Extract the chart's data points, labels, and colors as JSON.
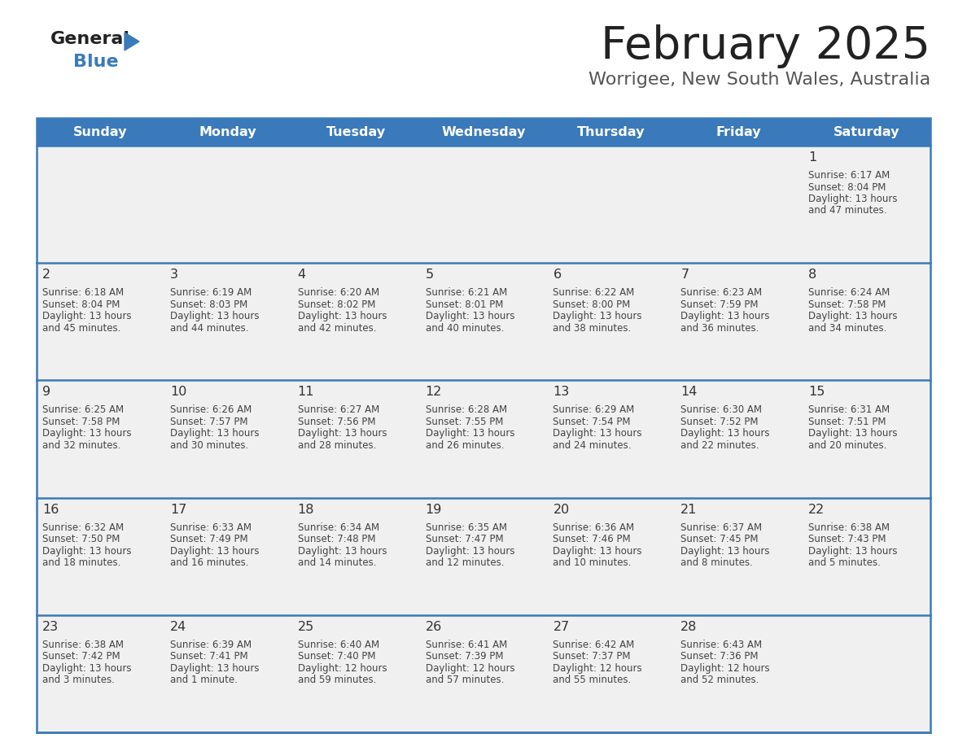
{
  "title": "February 2025",
  "subtitle": "Worrigee, New South Wales, Australia",
  "header_color": "#3a7aba",
  "header_text_color": "#ffffff",
  "day_names": [
    "Sunday",
    "Monday",
    "Tuesday",
    "Wednesday",
    "Thursday",
    "Friday",
    "Saturday"
  ],
  "background_color": "#ffffff",
  "cell_bg_color": "#f0f0f0",
  "cell_border_color": "#3a7aba",
  "day_number_color": "#333333",
  "info_text_color": "#444444",
  "title_color": "#222222",
  "subtitle_color": "#555555",
  "logo_general_color": "#222222",
  "logo_blue_color": "#3a7aba",
  "logo_triangle_color": "#3a7aba",
  "calendar_data": [
    [
      null,
      null,
      null,
      null,
      null,
      null,
      {
        "day": "1",
        "sunrise": "6:17 AM",
        "sunset": "8:04 PM",
        "daylight_hours": "13",
        "daylight_min": "47 minutes"
      }
    ],
    [
      {
        "day": "2",
        "sunrise": "6:18 AM",
        "sunset": "8:04 PM",
        "daylight_hours": "13",
        "daylight_min": "45 minutes"
      },
      {
        "day": "3",
        "sunrise": "6:19 AM",
        "sunset": "8:03 PM",
        "daylight_hours": "13",
        "daylight_min": "44 minutes"
      },
      {
        "day": "4",
        "sunrise": "6:20 AM",
        "sunset": "8:02 PM",
        "daylight_hours": "13",
        "daylight_min": "42 minutes"
      },
      {
        "day": "5",
        "sunrise": "6:21 AM",
        "sunset": "8:01 PM",
        "daylight_hours": "13",
        "daylight_min": "40 minutes"
      },
      {
        "day": "6",
        "sunrise": "6:22 AM",
        "sunset": "8:00 PM",
        "daylight_hours": "13",
        "daylight_min": "38 minutes"
      },
      {
        "day": "7",
        "sunrise": "6:23 AM",
        "sunset": "7:59 PM",
        "daylight_hours": "13",
        "daylight_min": "36 minutes"
      },
      {
        "day": "8",
        "sunrise": "6:24 AM",
        "sunset": "7:58 PM",
        "daylight_hours": "13",
        "daylight_min": "34 minutes"
      }
    ],
    [
      {
        "day": "9",
        "sunrise": "6:25 AM",
        "sunset": "7:58 PM",
        "daylight_hours": "13",
        "daylight_min": "32 minutes"
      },
      {
        "day": "10",
        "sunrise": "6:26 AM",
        "sunset": "7:57 PM",
        "daylight_hours": "13",
        "daylight_min": "30 minutes"
      },
      {
        "day": "11",
        "sunrise": "6:27 AM",
        "sunset": "7:56 PM",
        "daylight_hours": "13",
        "daylight_min": "28 minutes"
      },
      {
        "day": "12",
        "sunrise": "6:28 AM",
        "sunset": "7:55 PM",
        "daylight_hours": "13",
        "daylight_min": "26 minutes"
      },
      {
        "day": "13",
        "sunrise": "6:29 AM",
        "sunset": "7:54 PM",
        "daylight_hours": "13",
        "daylight_min": "24 minutes"
      },
      {
        "day": "14",
        "sunrise": "6:30 AM",
        "sunset": "7:52 PM",
        "daylight_hours": "13",
        "daylight_min": "22 minutes"
      },
      {
        "day": "15",
        "sunrise": "6:31 AM",
        "sunset": "7:51 PM",
        "daylight_hours": "13",
        "daylight_min": "20 minutes"
      }
    ],
    [
      {
        "day": "16",
        "sunrise": "6:32 AM",
        "sunset": "7:50 PM",
        "daylight_hours": "13",
        "daylight_min": "18 minutes"
      },
      {
        "day": "17",
        "sunrise": "6:33 AM",
        "sunset": "7:49 PM",
        "daylight_hours": "13",
        "daylight_min": "16 minutes"
      },
      {
        "day": "18",
        "sunrise": "6:34 AM",
        "sunset": "7:48 PM",
        "daylight_hours": "13",
        "daylight_min": "14 minutes"
      },
      {
        "day": "19",
        "sunrise": "6:35 AM",
        "sunset": "7:47 PM",
        "daylight_hours": "13",
        "daylight_min": "12 minutes"
      },
      {
        "day": "20",
        "sunrise": "6:36 AM",
        "sunset": "7:46 PM",
        "daylight_hours": "13",
        "daylight_min": "10 minutes"
      },
      {
        "day": "21",
        "sunrise": "6:37 AM",
        "sunset": "7:45 PM",
        "daylight_hours": "13",
        "daylight_min": "8 minutes"
      },
      {
        "day": "22",
        "sunrise": "6:38 AM",
        "sunset": "7:43 PM",
        "daylight_hours": "13",
        "daylight_min": "5 minutes"
      }
    ],
    [
      {
        "day": "23",
        "sunrise": "6:38 AM",
        "sunset": "7:42 PM",
        "daylight_hours": "13",
        "daylight_min": "3 minutes"
      },
      {
        "day": "24",
        "sunrise": "6:39 AM",
        "sunset": "7:41 PM",
        "daylight_hours": "13",
        "daylight_min": "1 minute"
      },
      {
        "day": "25",
        "sunrise": "6:40 AM",
        "sunset": "7:40 PM",
        "daylight_hours": "12",
        "daylight_min": "59 minutes"
      },
      {
        "day": "26",
        "sunrise": "6:41 AM",
        "sunset": "7:39 PM",
        "daylight_hours": "12",
        "daylight_min": "57 minutes"
      },
      {
        "day": "27",
        "sunrise": "6:42 AM",
        "sunset": "7:37 PM",
        "daylight_hours": "12",
        "daylight_min": "55 minutes"
      },
      {
        "day": "28",
        "sunrise": "6:43 AM",
        "sunset": "7:36 PM",
        "daylight_hours": "12",
        "daylight_min": "52 minutes"
      },
      null
    ]
  ],
  "figsize": [
    11.88,
    9.18
  ],
  "dpi": 100
}
